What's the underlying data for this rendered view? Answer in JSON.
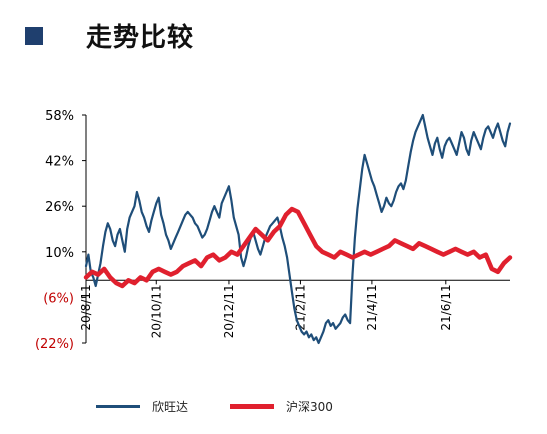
{
  "header": {
    "title": "走势比较",
    "accent": "#1f3f6e"
  },
  "chart_data": {
    "type": "line",
    "title": "",
    "xlabel": "",
    "ylabel": "",
    "yticks": [
      "58%",
      "42%",
      "26%",
      "10%",
      "(6%)",
      "(22%)"
    ],
    "ytick_values": [
      58,
      42,
      26,
      10,
      -6,
      -22
    ],
    "ytick_colors": [
      "#000000",
      "#000000",
      "#000000",
      "#000000",
      "#c00000",
      "#c00000"
    ],
    "ylim": [
      -22,
      58
    ],
    "baseline": 0,
    "xticks": [
      "20/8/11",
      "20/10/11",
      "20/12/11",
      "21/2/11",
      "21/4/11",
      "21/6/11"
    ],
    "xtick_values": [
      0,
      58,
      118,
      177,
      236,
      297
    ],
    "xlim": [
      0,
      350
    ],
    "x_unit": "days since 20/8/11",
    "series": [
      {
        "name": "欣旺达",
        "color": "#1f4e79",
        "x": [
          0,
          2,
          4,
          6,
          8,
          10,
          12,
          14,
          16,
          18,
          20,
          22,
          24,
          26,
          28,
          30,
          32,
          34,
          36,
          38,
          40,
          42,
          44,
          46,
          48,
          50,
          52,
          54,
          56,
          58,
          60,
          62,
          64,
          66,
          68,
          70,
          72,
          74,
          76,
          78,
          80,
          82,
          84,
          86,
          88,
          90,
          92,
          94,
          96,
          98,
          100,
          102,
          104,
          106,
          108,
          110,
          112,
          114,
          116,
          118,
          120,
          122,
          124,
          126,
          128,
          130,
          132,
          134,
          136,
          138,
          140,
          142,
          144,
          146,
          148,
          150,
          152,
          154,
          156,
          158,
          160,
          162,
          164,
          166,
          168,
          170,
          172,
          174,
          176,
          178,
          180,
          182,
          184,
          186,
          188,
          190,
          192,
          194,
          196,
          198,
          200,
          202,
          204,
          206,
          208,
          210,
          212,
          214,
          216,
          218,
          220,
          222,
          224,
          226,
          228,
          230,
          232,
          234,
          236,
          238,
          240,
          242,
          244,
          246,
          248,
          250,
          252,
          254,
          256,
          258,
          260,
          262,
          264,
          266,
          268,
          270,
          272,
          274,
          276,
          278,
          280,
          282,
          284,
          286,
          288,
          290,
          292,
          294,
          296,
          298,
          300,
          302,
          304,
          306,
          308,
          310,
          312,
          314,
          316,
          318,
          320,
          322,
          324,
          326,
          328,
          330,
          332,
          334,
          336,
          338,
          340,
          342,
          344,
          346,
          348,
          350
        ],
        "y": [
          5,
          9,
          3,
          1,
          -2,
          2,
          6,
          12,
          17,
          20,
          18,
          14,
          12,
          16,
          18,
          14,
          10,
          18,
          22,
          24,
          26,
          31,
          28,
          24,
          22,
          19,
          17,
          21,
          24,
          27,
          29,
          23,
          20,
          16,
          14,
          11,
          13,
          15,
          17,
          19,
          21,
          23,
          24,
          23,
          22,
          20,
          19,
          17,
          15,
          16,
          18,
          21,
          24,
          26,
          24,
          22,
          27,
          29,
          31,
          33,
          28,
          22,
          19,
          16,
          8,
          5,
          8,
          12,
          15,
          17,
          14,
          11,
          9,
          12,
          15,
          17,
          19,
          20,
          21,
          22,
          19,
          15,
          12,
          8,
          2,
          -4,
          -10,
          -14,
          -16,
          -18,
          -19,
          -18,
          -20,
          -19,
          -21,
          -20,
          -22,
          -20,
          -18,
          -15,
          -14,
          -16,
          -15,
          -17,
          -16,
          -15,
          -13,
          -12,
          -14,
          -15,
          2,
          15,
          25,
          32,
          39,
          44,
          41,
          38,
          35,
          33,
          30,
          27,
          24,
          26,
          29,
          27,
          26,
          28,
          31,
          33,
          34,
          32,
          35,
          40,
          45,
          49,
          52,
          54,
          56,
          58,
          54,
          50,
          47,
          44,
          48,
          50,
          46,
          43,
          47,
          49,
          50,
          48,
          46,
          44,
          48,
          52,
          50,
          46,
          44,
          49,
          52,
          50,
          48,
          46,
          50,
          53,
          54,
          52,
          50,
          53,
          55,
          52,
          49,
          47,
          52,
          55
        ],
        "note_y": "values approximate"
      },
      {
        "name": "沪深300",
        "color": "#e0202e",
        "x": [
          0,
          5,
          10,
          15,
          20,
          25,
          30,
          35,
          40,
          45,
          50,
          55,
          60,
          65,
          70,
          75,
          80,
          85,
          90,
          95,
          100,
          105,
          110,
          115,
          120,
          125,
          130,
          135,
          140,
          145,
          150,
          155,
          160,
          165,
          170,
          175,
          180,
          185,
          190,
          195,
          200,
          205,
          210,
          215,
          220,
          225,
          230,
          235,
          240,
          245,
          250,
          255,
          260,
          265,
          270,
          275,
          280,
          285,
          290,
          295,
          300,
          305,
          310,
          315,
          320,
          325,
          330,
          335,
          340,
          345,
          350
        ],
        "y": [
          1,
          3,
          2,
          4,
          1,
          -1,
          -2,
          0,
          -1,
          1,
          0,
          3,
          4,
          3,
          2,
          3,
          5,
          6,
          7,
          5,
          8,
          9,
          7,
          8,
          10,
          9,
          12,
          15,
          18,
          16,
          14,
          17,
          19,
          23,
          25,
          24,
          20,
          16,
          12,
          10,
          9,
          8,
          10,
          9,
          8,
          9,
          10,
          9,
          10,
          11,
          12,
          14,
          13,
          12,
          11,
          13,
          12,
          11,
          10,
          9,
          10,
          11,
          10,
          9,
          10,
          8,
          9,
          4,
          3,
          6,
          8
        ]
      }
    ],
    "legend_position": "bottom",
    "grid": false
  }
}
